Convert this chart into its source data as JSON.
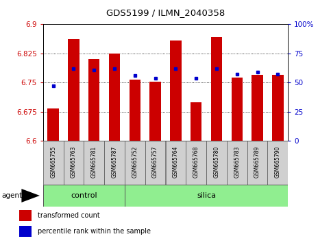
{
  "title": "GDS5199 / ILMN_2040358",
  "samples": [
    "GSM665755",
    "GSM665763",
    "GSM665781",
    "GSM665787",
    "GSM665752",
    "GSM665757",
    "GSM665764",
    "GSM665768",
    "GSM665780",
    "GSM665783",
    "GSM665789",
    "GSM665790"
  ],
  "bar_values": [
    6.683,
    6.862,
    6.811,
    6.825,
    6.758,
    6.752,
    6.858,
    6.7,
    6.868,
    6.763,
    6.77,
    6.77
  ],
  "percentile_pct": [
    47,
    62,
    61,
    62,
    56,
    54,
    62,
    54,
    62,
    57,
    59,
    57
  ],
  "ylim_left": [
    6.6,
    6.9
  ],
  "yticks_left": [
    6.6,
    6.675,
    6.75,
    6.825,
    6.9
  ],
  "ytick_labels_left": [
    "6.6",
    "6.675",
    "6.75",
    "6.825",
    "6.9"
  ],
  "yticks_right": [
    0,
    25,
    50,
    75,
    100
  ],
  "ytick_labels_right": [
    "0",
    "25",
    "50",
    "75",
    "100%"
  ],
  "bar_color": "#cc0000",
  "dot_color": "#0000cc",
  "bar_bottom": 6.6,
  "groups": [
    {
      "label": "control",
      "start": 0,
      "end": 4
    },
    {
      "label": "silica",
      "start": 4,
      "end": 12
    }
  ],
  "group_color": "#90ee90",
  "agent_label": "agent",
  "legend_items": [
    {
      "color": "#cc0000",
      "label": "transformed count"
    },
    {
      "color": "#0000cc",
      "label": "percentile rank within the sample"
    }
  ],
  "bar_width": 0.55,
  "tick_color_left": "#cc0000",
  "tick_color_right": "#0000cc"
}
